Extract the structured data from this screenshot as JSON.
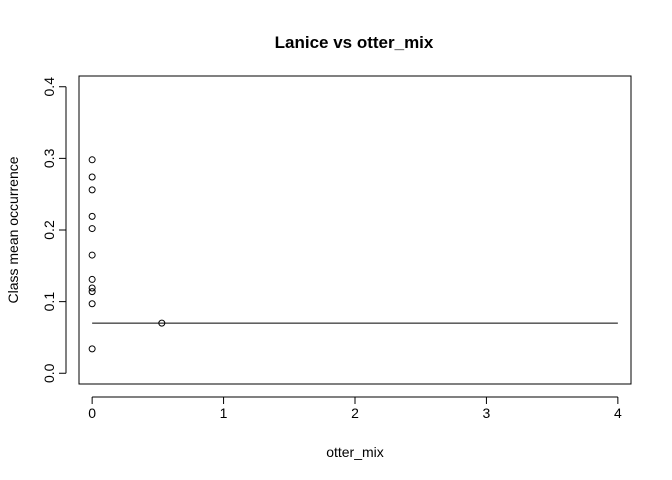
{
  "chart_data": {
    "type": "scatter",
    "title": "Lanice vs otter_mix",
    "xlabel": "otter_mix",
    "ylabel": "Class mean occurrence",
    "xlim": [
      -0.1,
      4.1
    ],
    "ylim": [
      -0.015,
      0.415
    ],
    "x_ticks": [
      0,
      1,
      2,
      3,
      4
    ],
    "x_tick_labels": [
      "0",
      "1",
      "2",
      "3",
      "4"
    ],
    "y_ticks": [
      0.0,
      0.1,
      0.2,
      0.3,
      0.4
    ],
    "y_tick_labels": [
      "0.0",
      "0.1",
      "0.2",
      "0.3",
      "0.4"
    ],
    "points": [
      {
        "x": 0,
        "y": 0.298
      },
      {
        "x": 0,
        "y": 0.274
      },
      {
        "x": 0,
        "y": 0.256
      },
      {
        "x": 0,
        "y": 0.219
      },
      {
        "x": 0,
        "y": 0.202
      },
      {
        "x": 0,
        "y": 0.165
      },
      {
        "x": 0,
        "y": 0.131
      },
      {
        "x": 0,
        "y": 0.119
      },
      {
        "x": 0,
        "y": 0.114
      },
      {
        "x": 0,
        "y": 0.097
      },
      {
        "x": 0,
        "y": 0.034
      },
      {
        "x": 0.53,
        "y": 0.07
      }
    ],
    "line": {
      "x": [
        0,
        4
      ],
      "y": [
        0.07,
        0.07
      ]
    },
    "grid": false,
    "legend": "none"
  }
}
